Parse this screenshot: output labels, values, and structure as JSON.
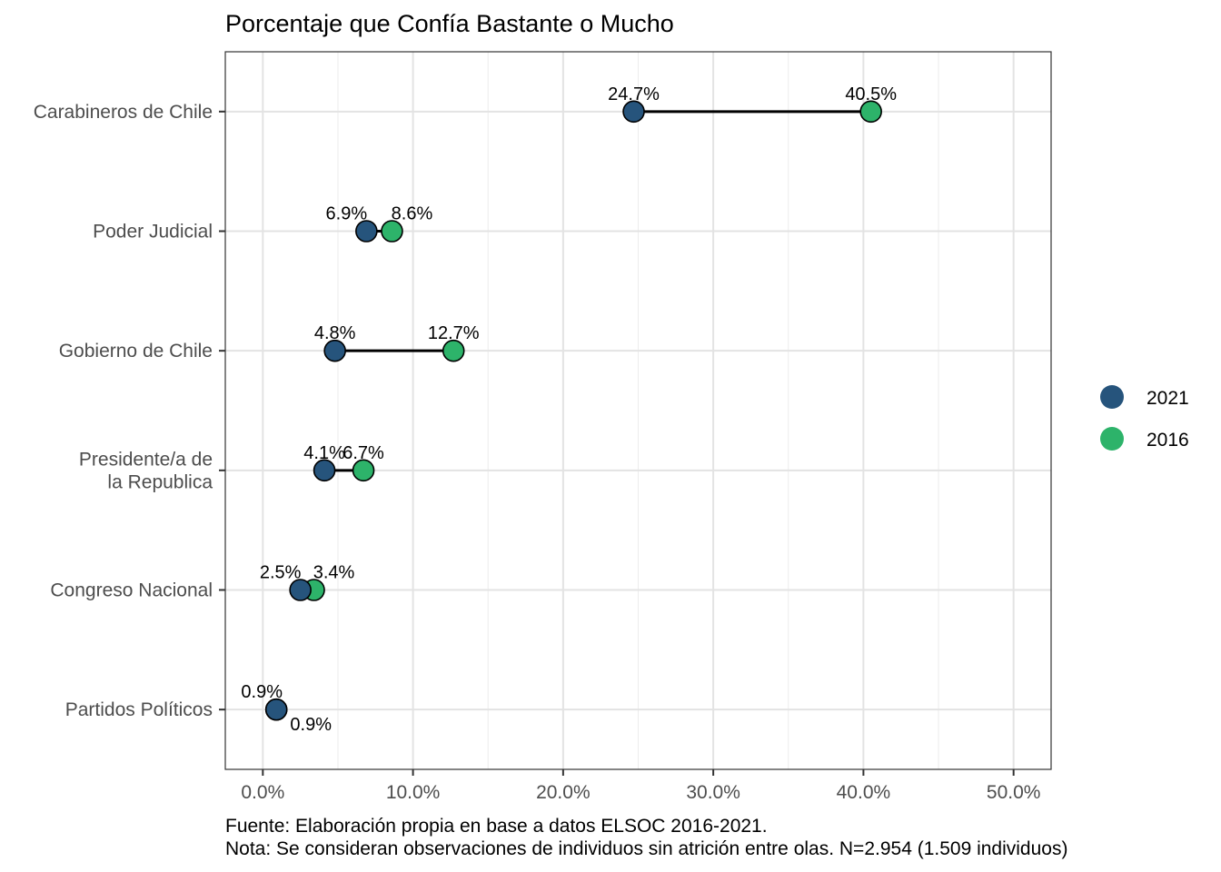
{
  "chart_data": {
    "type": "dumbbell",
    "title": "Porcentaje que Confía Bastante o Mucho",
    "categories": [
      "Carabineros de Chile",
      "Poder Judicial",
      "Gobierno de Chile",
      "Presidente/a de\nla Republica",
      "Congreso Nacional",
      "Partidos Políticos"
    ],
    "series": [
      {
        "name": "2021",
        "color": "#26547c",
        "values": [
          24.7,
          6.9,
          4.8,
          4.1,
          2.5,
          0.9
        ],
        "labels": [
          "24.7%",
          "6.9%",
          "4.8%",
          "4.1%",
          "2.5%",
          "0.9%"
        ]
      },
      {
        "name": "2016",
        "color": "#2db36a",
        "values": [
          40.5,
          8.6,
          12.7,
          6.7,
          3.4,
          0.9
        ],
        "labels": [
          "40.5%",
          "8.6%",
          "12.7%",
          "6.7%",
          "3.4%",
          "0.9%"
        ]
      }
    ],
    "x_ticks": [
      0,
      10,
      20,
      30,
      40,
      50
    ],
    "x_tick_labels": [
      "0.0%",
      "10.0%",
      "20.0%",
      "30.0%",
      "40.0%",
      "50.0%"
    ],
    "xlim": [
      -2.5,
      52.5
    ],
    "xlabel": "",
    "ylabel": "",
    "grid": true,
    "legend_position": "right",
    "caption": [
      "Fuente: Elaboración propia en base a datos ELSOC 2016-2021.",
      "Nota: Se consideran observaciones de individuos sin atrición entre olas. N=2.954 (1.509 individuos)"
    ]
  }
}
